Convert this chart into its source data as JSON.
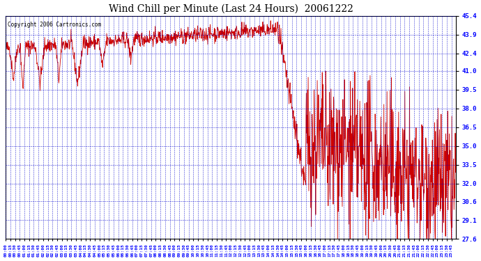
{
  "title": "Wind Chill per Minute (Last 24 Hours)  20061222",
  "copyright": "Copyright 2006 Cartronics.com",
  "ylabel_values": [
    27.6,
    29.1,
    30.6,
    32.0,
    33.5,
    35.0,
    36.5,
    38.0,
    39.5,
    41.0,
    42.4,
    43.9,
    45.4
  ],
  "ylim": [
    27.6,
    45.4
  ],
  "plot_bg_color": "#ffffff",
  "line_color": "#cc0000",
  "grid_color": "#0000cc",
  "title_color": "#000000",
  "fig_bg_color": "#ffffff",
  "total_minutes": 1440
}
